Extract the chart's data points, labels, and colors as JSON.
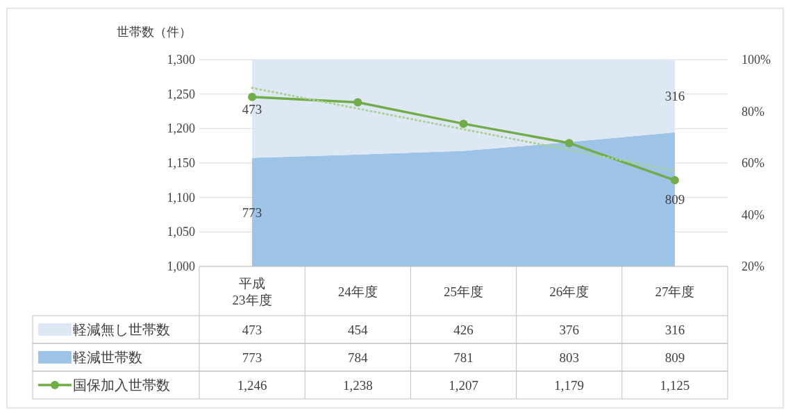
{
  "chart_data": {
    "type": "area",
    "ylabel": "世帯数（件）",
    "categories": [
      "平成\n23年度",
      "24年度",
      "25年度",
      "26年度",
      "27年度"
    ],
    "series": [
      {
        "name": "軽減世帯数",
        "axis": "y2",
        "color": "#9dc3e6",
        "values": [
          62.0,
          63.3,
          64.7,
          68.1,
          71.9
        ]
      },
      {
        "name": "軽減無し世帯数",
        "axis": "y2",
        "color": "#dde8f4",
        "values": [
          38.0,
          36.7,
          35.3,
          31.9,
          28.1
        ]
      },
      {
        "name": "国保加入世帯数",
        "type": "line",
        "color": "#70ad47",
        "marker": "circle",
        "line_style": "solid",
        "values": [
          1246,
          1238,
          1207,
          1179,
          1125
        ],
        "value_labels": [
          "1,246",
          "1,238",
          "1,207",
          "1,179",
          "1,125"
        ]
      },
      {
        "type": "line",
        "color": "#a9d18e",
        "marker": "none",
        "line_style": "dotted",
        "values": [
          1259,
          1229,
          1199,
          1169,
          1139
        ]
      }
    ],
    "annotations": [
      "473",
      "454",
      "426",
      "376",
      "316",
      "773",
      "784",
      "781",
      "803",
      "809"
    ],
    "stacked": true,
    "ylim": [
      1000,
      1300
    ],
    "yticks": [
      {
        "value": 1000,
        "label": "1,000"
      },
      {
        "value": 1050,
        "label": "1,050"
      },
      {
        "value": 1100,
        "label": "1,100"
      },
      {
        "value": 1150,
        "label": "1,150"
      },
      {
        "value": 1200,
        "label": "1,200"
      },
      {
        "value": 1250,
        "label": "1,250"
      },
      {
        "value": 1300,
        "label": "1,300"
      }
    ],
    "y2lim": [
      20,
      100
    ],
    "y2ticks": [
      {
        "value": 20,
        "label": "20%"
      },
      {
        "value": 40,
        "label": "40%"
      },
      {
        "value": 60,
        "label": "60%"
      },
      {
        "value": 80,
        "label": "80%"
      },
      {
        "value": 100,
        "label": "100%"
      }
    ],
    "grid": "y",
    "legend": "bottom"
  }
}
